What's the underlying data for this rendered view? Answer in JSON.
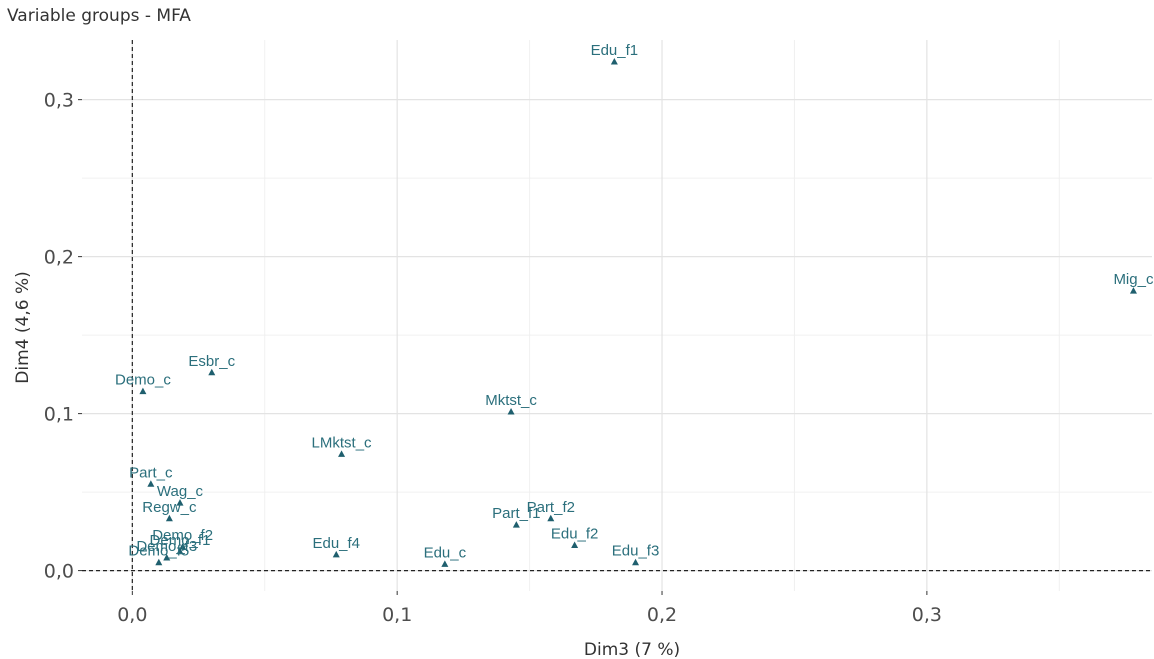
{
  "title": "Variable groups - MFA",
  "chart_data": {
    "type": "scatter",
    "title": "Variable groups - MFA",
    "xlabel": "Dim3 (7 %)",
    "ylabel": "Dim4 (4,6 %)",
    "xlim": [
      -0.019,
      0.385
    ],
    "ylim": [
      -0.013,
      0.338
    ],
    "x_ticks": [
      0.0,
      0.1,
      0.2,
      0.3
    ],
    "x_tick_labels": [
      "0,0",
      "0,1",
      "0,2",
      "0,3"
    ],
    "y_ticks": [
      0.0,
      0.1,
      0.2,
      0.3
    ],
    "y_tick_labels": [
      "0,0",
      "0,1",
      "0,2",
      "0,3"
    ],
    "grid": true,
    "reference_lines": {
      "x": 0,
      "y": 0,
      "style": "dashed"
    },
    "marker": "triangle",
    "color": "#1f5f6e",
    "label_color": "#2b6f7c",
    "points": [
      {
        "label": "Edu_f1",
        "x": 0.182,
        "y": 0.324
      },
      {
        "label": "Mig_c",
        "x": 0.378,
        "y": 0.178
      },
      {
        "label": "Esbr_c",
        "x": 0.03,
        "y": 0.126
      },
      {
        "label": "Demo_c",
        "x": 0.004,
        "y": 0.114
      },
      {
        "label": "Mktst_c",
        "x": 0.143,
        "y": 0.101
      },
      {
        "label": "LMktst_c",
        "x": 0.079,
        "y": 0.074
      },
      {
        "label": "Part_c",
        "x": 0.007,
        "y": 0.055
      },
      {
        "label": "Wag_c",
        "x": 0.018,
        "y": 0.043
      },
      {
        "label": "Regw_c",
        "x": 0.014,
        "y": 0.033
      },
      {
        "label": "Part_f2",
        "x": 0.158,
        "y": 0.033
      },
      {
        "label": "Part_f1",
        "x": 0.145,
        "y": 0.029
      },
      {
        "label": "Edu_f2",
        "x": 0.167,
        "y": 0.016
      },
      {
        "label": "Demo_f2",
        "x": 0.019,
        "y": 0.015
      },
      {
        "label": "Demo_f1",
        "x": 0.018,
        "y": 0.012
      },
      {
        "label": "Demo_f3",
        "x": 0.013,
        "y": 0.008
      },
      {
        "label": "Edu_f4",
        "x": 0.077,
        "y": 0.01
      },
      {
        "label": "Edu_f3",
        "x": 0.19,
        "y": 0.005
      },
      {
        "label": "Edu_c",
        "x": 0.118,
        "y": 0.004
      },
      {
        "label": "Demo_f5",
        "x": 0.01,
        "y": 0.005
      }
    ]
  }
}
